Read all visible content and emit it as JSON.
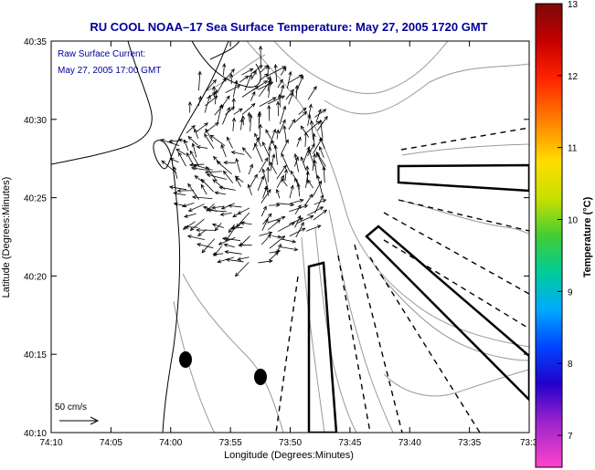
{
  "title": "RU COOL  NOAA–17  Sea Surface Temperature:  May 27, 2005 1720 GMT",
  "annotation": {
    "line1": "Raw Surface Current:",
    "line2": "May 27, 2005 17:00 GMT"
  },
  "scale_label": "50 cm/s",
  "x_axis": {
    "label": "Longitude (Degrees:Minutes)",
    "ticks": [
      "74:10",
      "74:05",
      "74:00",
      "73:55",
      "73:50",
      "73:45",
      "73:40",
      "73:35",
      "73:3"
    ]
  },
  "y_axis": {
    "label": "Latitude (Degrees:Minutes)",
    "ticks": [
      "40:35",
      "40:30",
      "40:25",
      "40:20",
      "40:15",
      "40:10"
    ]
  },
  "colorbar": {
    "label": "Temperature (°C)",
    "ticks": [
      "13",
      "12",
      "11",
      "10",
      "9",
      "8",
      "7"
    ],
    "colors": [
      "#7a0a0a",
      "#c40000",
      "#ff3300",
      "#ff9900",
      "#ffee00",
      "#aadd00",
      "#33cc33",
      "#00cccc",
      "#0088ff",
      "#0022ee",
      "#4400bb",
      "#cc22cc",
      "#ff44cc"
    ]
  },
  "colors": {
    "title": "#000099",
    "annotation": "#000099",
    "contour": "#999999",
    "frame": "#000000"
  }
}
